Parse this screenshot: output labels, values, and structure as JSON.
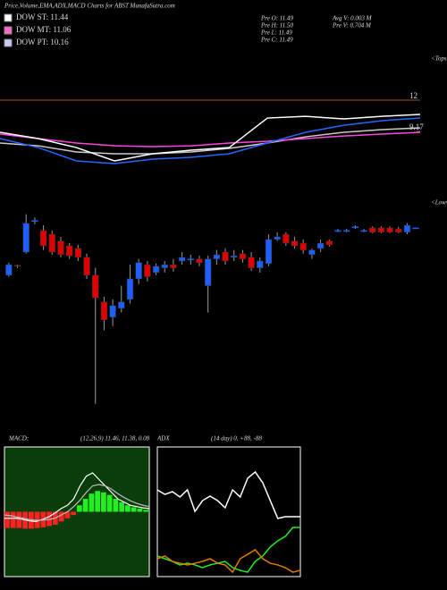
{
  "title": "Price,Volume,EMA,ADX,MACD Charts for ABST MunafaSutra.com",
  "legend": [
    {
      "text": "DOW ST: 11.44",
      "color": "#ffffff"
    },
    {
      "text": "DOW MT: 11.06",
      "color": "#ff66cc"
    },
    {
      "text": "DOW PT: 10.16",
      "color": "#ccccff"
    }
  ],
  "info": [
    "Pre  O: 11.49",
    "Pre  H: 11.50",
    "Pre  L: 11.49",
    "Pre  C: 11.49",
    "Avg V: 0.003  M",
    "Pre  V: 0.704  M"
  ],
  "chart_data": [
    {
      "type": "candlestick",
      "annotation": "<Lows",
      "ylim": [
        8,
        12
      ],
      "up_color": "#1f5fff",
      "down_color": "#e00000",
      "open": [
        10.59,
        10.78,
        11.03,
        11.63,
        11.44,
        11.37,
        11.24,
        11.15,
        11.1,
        10.93,
        10.59,
        10.08,
        9.79,
        9.96,
        10.13,
        10.52,
        10.79,
        10.64,
        10.73,
        10.79,
        10.86,
        10.9,
        10.9,
        10.39,
        10.9,
        11.03,
        10.93,
        11.0,
        10.93,
        10.73,
        10.81,
        11.27,
        11.37,
        11.24,
        11.2,
        10.98,
        11.1,
        11.24,
        11.44,
        11.44,
        11.51,
        11.44,
        11.49,
        11.49,
        11.49,
        11.47,
        11.41,
        11.49
      ],
      "high": [
        10.83,
        10.79,
        11.75,
        11.69,
        11.54,
        11.44,
        11.32,
        11.2,
        11.17,
        11.0,
        10.73,
        10.18,
        10.13,
        10.39,
        10.79,
        10.9,
        10.86,
        10.81,
        10.86,
        10.9,
        11.03,
        10.98,
        10.96,
        10.96,
        11.07,
        11.1,
        11.07,
        11.07,
        11.03,
        10.93,
        11.37,
        11.41,
        11.41,
        11.32,
        11.27,
        11.1,
        11.27,
        11.27,
        11.47,
        11.47,
        11.54,
        11.47,
        11.52,
        11.52,
        11.52,
        11.51,
        11.58,
        11.5
      ],
      "low": [
        10.56,
        10.73,
        11.0,
        11.56,
        11.07,
        10.98,
        10.93,
        10.9,
        10.86,
        10.52,
        8.14,
        9.54,
        9.62,
        9.88,
        10.05,
        10.42,
        10.47,
        10.59,
        10.64,
        10.66,
        10.79,
        10.79,
        10.76,
        9.88,
        10.79,
        10.79,
        10.86,
        10.83,
        10.67,
        10.64,
        10.76,
        11.24,
        11.15,
        11.1,
        11.0,
        10.9,
        11.03,
        11.13,
        11.41,
        11.41,
        11.47,
        11.41,
        11.39,
        11.39,
        11.39,
        11.39,
        11.37,
        11.49
      ],
      "close": [
        10.79,
        10.76,
        11.58,
        11.63,
        11.15,
        11.03,
        10.98,
        10.96,
        10.93,
        10.59,
        10.16,
        9.74,
        10.01,
        10.08,
        10.52,
        10.83,
        10.56,
        10.76,
        10.79,
        10.73,
        10.93,
        10.9,
        10.83,
        10.9,
        10.98,
        10.86,
        10.96,
        10.9,
        10.73,
        10.86,
        11.27,
        11.32,
        11.2,
        11.15,
        11.07,
        11.07,
        11.2,
        11.17,
        11.44,
        11.44,
        11.51,
        11.44,
        11.41,
        11.41,
        11.41,
        11.41,
        11.54,
        11.49
      ]
    },
    {
      "type": "line",
      "annotation": "<Tops",
      "ylim": [
        4.88,
        13.38
      ],
      "yticks": [
        12,
        9.17
      ],
      "tick_color": "#a0522d",
      "series": [
        {
          "color": "#cccccc",
          "values": [
            8.12,
            7.87,
            7.31,
            7.15,
            7.15,
            7.31,
            7.63,
            8.12,
            8.68,
            9.09,
            9.33,
            9.49
          ]
        },
        {
          "color": "#ff44dd",
          "values": [
            8.93,
            8.52,
            8.12,
            7.87,
            7.79,
            7.87,
            8.12,
            8.28,
            8.52,
            8.76,
            8.93,
            9.09
          ]
        },
        {
          "color": "#2266ff",
          "values": [
            8.52,
            7.71,
            6.5,
            6.26,
            6.66,
            6.82,
            7.15,
            8.12,
            9.09,
            9.73,
            10.14,
            10.38
          ]
        },
        {
          "color": "#ffffff",
          "values": [
            9.09,
            8.52,
            7.71,
            6.5,
            7.15,
            7.47,
            7.71,
            10.38,
            10.54,
            10.3,
            10.54,
            10.71
          ]
        }
      ]
    },
    {
      "type": "macd",
      "title": "MACD:",
      "subtitle": "(12,26,9) 11.46, 11.38, 0.08",
      "ylim": [
        -1,
        1
      ],
      "up_color": "#22ee22",
      "down_color": "#ff2222",
      "histogram": [
        -0.25,
        -0.25,
        -0.25,
        -0.26,
        -0.26,
        -0.25,
        -0.24,
        -0.22,
        -0.2,
        -0.15,
        -0.1,
        -0.05,
        0.1,
        0.2,
        0.28,
        0.32,
        0.3,
        0.26,
        0.2,
        0.15,
        0.1,
        0.07,
        0.05,
        0.03
      ],
      "series": [
        {
          "color": "#ffffff",
          "values": [
            -0.1,
            -0.1,
            -0.1,
            -0.12,
            -0.14,
            -0.15,
            -0.12,
            -0.08,
            -0.02,
            0.05,
            0.1,
            0.2,
            0.4,
            0.55,
            0.6,
            0.5,
            0.4,
            0.3,
            0.2,
            0.15,
            0.1,
            0.08,
            0.06,
            0.05
          ]
        },
        {
          "color": "#bbbbbb",
          "values": [
            -0.05,
            -0.06,
            -0.08,
            -0.1,
            -0.12,
            -0.13,
            -0.13,
            -0.12,
            -0.1,
            -0.05,
            0,
            0.08,
            0.18,
            0.3,
            0.4,
            0.42,
            0.4,
            0.35,
            0.28,
            0.22,
            0.17,
            0.13,
            0.1,
            0.08
          ]
        }
      ]
    },
    {
      "type": "line",
      "title": "ADX",
      "subtitle": "(14 day) 0, +88, -88",
      "ylim": [
        0,
        100
      ],
      "series": [
        {
          "color": "#ffffff",
          "values": [
            66.9,
            63.4,
            65.5,
            61.4,
            66.9,
            50.3,
            58.6,
            62.1,
            58.6,
            53.1,
            66.9,
            61.4,
            75.9,
            80.7,
            72.4,
            58.6,
            44.8,
            46.2,
            46.2,
            46.2
          ]
        },
        {
          "color": "#22ee22",
          "values": [
            15.9,
            13.8,
            11.7,
            9.0,
            10.3,
            9.0,
            6.9,
            9.0,
            10.3,
            11.7,
            6.9,
            4.8,
            3.4,
            11.7,
            15.9,
            22.8,
            27.6,
            31.0,
            37.9,
            37.9
          ]
        },
        {
          "color": "#e07b00",
          "values": [
            13.8,
            15.9,
            11.7,
            10.3,
            9.0,
            10.3,
            11.7,
            13.8,
            10.3,
            9.0,
            3.4,
            13.8,
            17.2,
            20.7,
            13.8,
            10.3,
            9.0,
            6.9,
            3.4,
            4.8
          ]
        }
      ]
    }
  ]
}
